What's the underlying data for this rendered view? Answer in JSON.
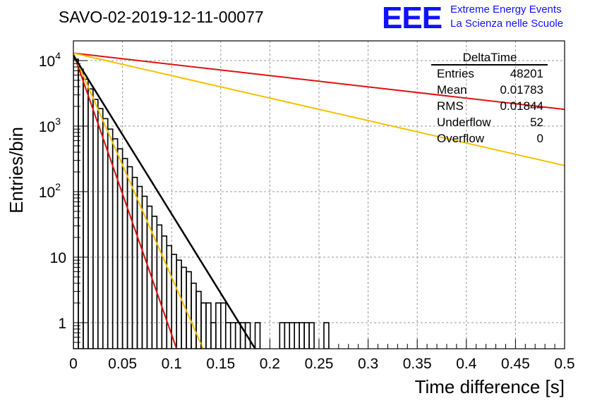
{
  "header": {
    "run_title": "SAVO-02-2019-12-11-00077",
    "logo_letters": "EEE",
    "logo_line1": "Extreme Energy Events",
    "logo_line2": "La Scienza nelle Scuole"
  },
  "stats": {
    "name": "DeltaTime",
    "rows": [
      {
        "label": "Entries",
        "value": "48201"
      },
      {
        "label": "Mean",
        "value": "0.01783"
      },
      {
        "label": "RMS",
        "value": "0.01844"
      },
      {
        "label": "Underflow",
        "value": "52"
      },
      {
        "label": "Overflow",
        "value": "0"
      }
    ]
  },
  "chart_data": {
    "type": "line",
    "xlabel": "Time difference [s]",
    "ylabel": "Entries/bin",
    "xlim": [
      0,
      0.5
    ],
    "ylim": [
      0.4,
      20000
    ],
    "yscale": "log",
    "grid": true,
    "x_ticks": [
      "0",
      "0.05",
      "0.1",
      "0.15",
      "0.2",
      "0.25",
      "0.3",
      "0.35",
      "0.4",
      "0.45",
      "0.5"
    ],
    "y_ticks": [
      {
        "value": 1,
        "base": "1",
        "exp": ""
      },
      {
        "value": 10,
        "base": "10",
        "exp": ""
      },
      {
        "value": 100,
        "base": "10",
        "exp": "2"
      },
      {
        "value": 1000,
        "base": "10",
        "exp": "3"
      },
      {
        "value": 10000,
        "base": "10",
        "exp": "4"
      }
    ],
    "histogram": {
      "bin_width": 0.005,
      "bins": [
        {
          "x": 0.0,
          "y": 10500
        },
        {
          "x": 0.005,
          "y": 7400
        },
        {
          "x": 0.01,
          "y": 5200
        },
        {
          "x": 0.015,
          "y": 3700
        },
        {
          "x": 0.02,
          "y": 2550
        },
        {
          "x": 0.025,
          "y": 1850
        },
        {
          "x": 0.03,
          "y": 1300
        },
        {
          "x": 0.035,
          "y": 900
        },
        {
          "x": 0.04,
          "y": 640
        },
        {
          "x": 0.045,
          "y": 450
        },
        {
          "x": 0.05,
          "y": 320
        },
        {
          "x": 0.055,
          "y": 240
        },
        {
          "x": 0.06,
          "y": 165
        },
        {
          "x": 0.065,
          "y": 120
        },
        {
          "x": 0.07,
          "y": 85
        },
        {
          "x": 0.075,
          "y": 60
        },
        {
          "x": 0.08,
          "y": 42
        },
        {
          "x": 0.085,
          "y": 31
        },
        {
          "x": 0.09,
          "y": 21
        },
        {
          "x": 0.095,
          "y": 15
        },
        {
          "x": 0.1,
          "y": 11
        },
        {
          "x": 0.105,
          "y": 9
        },
        {
          "x": 0.11,
          "y": 7
        },
        {
          "x": 0.115,
          "y": 6
        },
        {
          "x": 0.12,
          "y": 4
        },
        {
          "x": 0.125,
          "y": 3
        },
        {
          "x": 0.13,
          "y": 2
        },
        {
          "x": 0.135,
          "y": 2
        },
        {
          "x": 0.14,
          "y": 1
        },
        {
          "x": 0.145,
          "y": 2
        },
        {
          "x": 0.15,
          "y": 2
        },
        {
          "x": 0.155,
          "y": 1
        },
        {
          "x": 0.16,
          "y": 1
        },
        {
          "x": 0.165,
          "y": 1
        },
        {
          "x": 0.17,
          "y": 1
        },
        {
          "x": 0.175,
          "y": 1
        },
        {
          "x": 0.18,
          "y": 0
        },
        {
          "x": 0.185,
          "y": 1
        },
        {
          "x": 0.19,
          "y": 0
        },
        {
          "x": 0.195,
          "y": 0
        },
        {
          "x": 0.2,
          "y": 0
        },
        {
          "x": 0.205,
          "y": 0
        },
        {
          "x": 0.21,
          "y": 1
        },
        {
          "x": 0.215,
          "y": 1
        },
        {
          "x": 0.22,
          "y": 1
        },
        {
          "x": 0.225,
          "y": 1
        },
        {
          "x": 0.23,
          "y": 1
        },
        {
          "x": 0.235,
          "y": 1
        },
        {
          "x": 0.24,
          "y": 1
        },
        {
          "x": 0.245,
          "y": 0
        },
        {
          "x": 0.25,
          "y": 0
        },
        {
          "x": 0.255,
          "y": 1
        }
      ]
    },
    "lines": [
      {
        "color": "#e01010",
        "points": [
          [
            0,
            13000
          ],
          [
            0.5,
            1800
          ]
        ]
      },
      {
        "color": "#f5c000",
        "points": [
          [
            0,
            13000
          ],
          [
            0.5,
            250
          ]
        ]
      },
      {
        "color": "#e01010",
        "points": [
          [
            0,
            13000
          ],
          [
            0.105,
            0.4
          ]
        ]
      },
      {
        "color": "#f5c000",
        "points": [
          [
            0,
            13000
          ],
          [
            0.132,
            0.4
          ]
        ]
      },
      {
        "color": "#000000",
        "points": [
          [
            0,
            12000
          ],
          [
            0.185,
            0.4
          ]
        ]
      }
    ]
  }
}
